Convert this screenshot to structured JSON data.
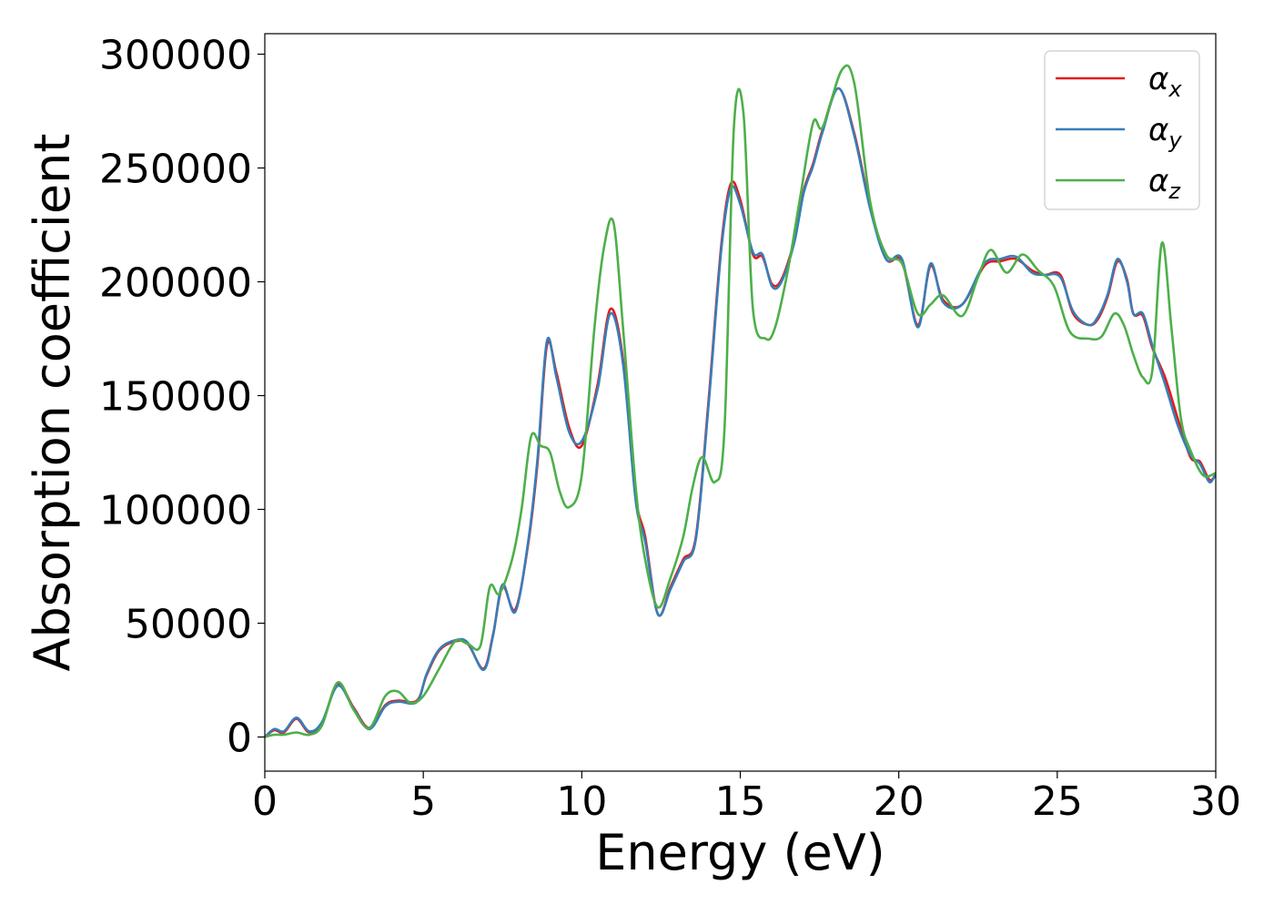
{
  "chart_data": {
    "type": "line",
    "title": "",
    "xlabel": "Energy (eV)",
    "ylabel": "Absorption coefficient",
    "xlim": [
      0,
      30
    ],
    "ylim": [
      -15000,
      309000
    ],
    "xticks": [
      0,
      5,
      10,
      15,
      20,
      25,
      30
    ],
    "yticks": [
      0,
      50000,
      100000,
      150000,
      200000,
      250000,
      300000
    ],
    "xtick_labels": [
      "0",
      "5",
      "10",
      "15",
      "20",
      "25",
      "30"
    ],
    "ytick_labels": [
      "0",
      "50000",
      "100000",
      "150000",
      "200000",
      "250000",
      "300000"
    ],
    "grid": false,
    "legend_position": "top-right",
    "series": [
      {
        "name": "αx",
        "legend_base": "α",
        "legend_sub": "x",
        "color": "#e41a1c",
        "x": [
          0,
          0.3,
          0.6,
          1.0,
          1.4,
          1.8,
          2.3,
          2.8,
          3.3,
          3.8,
          4.2,
          4.8,
          5.1,
          5.5,
          6.0,
          6.4,
          6.9,
          7.2,
          7.5,
          7.9,
          8.3,
          8.6,
          8.9,
          9.2,
          9.6,
          10.0,
          10.5,
          10.9,
          11.3,
          11.7,
          12.0,
          12.4,
          12.8,
          13.2,
          13.6,
          14.0,
          14.4,
          14.7,
          15.0,
          15.4,
          15.7,
          16.0,
          16.3,
          16.7,
          17.0,
          17.3,
          17.6,
          18.1,
          18.6,
          19.1,
          19.6,
          20.1,
          20.6,
          21.0,
          21.4,
          22.0,
          22.7,
          23.2,
          23.7,
          24.2,
          24.6,
          25.1,
          25.5,
          26.0,
          26.3,
          26.6,
          26.9,
          27.2,
          27.4,
          27.7,
          28.0,
          28.4,
          28.8,
          29.2,
          29.5,
          29.8,
          30.0
        ],
        "y": [
          0,
          3000,
          2000,
          8000,
          2000,
          6000,
          23000,
          13000,
          4000,
          14000,
          16000,
          16000,
          27000,
          38000,
          42000,
          41000,
          30000,
          45000,
          66000,
          56000,
          84000,
          120000,
          172000,
          160000,
          136000,
          128000,
          155000,
          188000,
          166000,
          106000,
          88000,
          54000,
          66000,
          78000,
          88000,
          148000,
          216000,
          243000,
          236000,
          212000,
          211000,
          199000,
          201000,
          218000,
          240000,
          252000,
          267000,
          285000,
          265000,
          233000,
          210000,
          209000,
          181000,
          207000,
          192000,
          190000,
          207000,
          209000,
          210000,
          205000,
          203000,
          203000,
          186000,
          181000,
          184000,
          194000,
          209000,
          201000,
          186000,
          185000,
          171000,
          158000,
          140000,
          123000,
          121000,
          113000,
          115000
        ]
      },
      {
        "name": "αy",
        "legend_base": "α",
        "legend_sub": "y",
        "color": "#377eb8",
        "x": [
          0,
          0.3,
          0.6,
          1.0,
          1.4,
          1.8,
          2.3,
          2.8,
          3.3,
          3.8,
          4.2,
          4.8,
          5.1,
          5.5,
          6.0,
          6.4,
          6.9,
          7.2,
          7.5,
          7.9,
          8.3,
          8.6,
          8.9,
          9.2,
          9.6,
          10.0,
          10.5,
          10.9,
          11.3,
          11.7,
          12.0,
          12.4,
          12.8,
          13.2,
          13.6,
          14.0,
          14.4,
          14.7,
          15.0,
          15.4,
          15.7,
          16.0,
          16.3,
          16.7,
          17.0,
          17.3,
          17.6,
          18.1,
          18.6,
          19.1,
          19.6,
          20.1,
          20.6,
          21.0,
          21.4,
          22.0,
          22.7,
          23.2,
          23.7,
          24.2,
          24.6,
          25.1,
          25.5,
          26.0,
          26.3,
          26.6,
          26.9,
          27.2,
          27.4,
          27.7,
          28.0,
          28.4,
          28.8,
          29.2,
          29.5,
          29.8,
          30.0
        ],
        "y": [
          0,
          3500,
          2500,
          8500,
          2500,
          6500,
          22500,
          12500,
          3500,
          13500,
          15500,
          15500,
          27500,
          38500,
          42500,
          41500,
          29500,
          44500,
          67000,
          55000,
          85000,
          122000,
          174000,
          158000,
          134000,
          130000,
          153000,
          186000,
          164000,
          104000,
          86000,
          54000,
          65000,
          77000,
          87000,
          146000,
          214000,
          241000,
          234000,
          213000,
          212000,
          198000,
          200000,
          217000,
          239000,
          251000,
          266000,
          285000,
          264000,
          232000,
          210000,
          210000,
          180000,
          208000,
          191000,
          190000,
          208000,
          210000,
          211000,
          204000,
          203000,
          202000,
          187000,
          181000,
          185000,
          195000,
          210000,
          200000,
          186000,
          186000,
          172000,
          155000,
          137000,
          124000,
          120000,
          112000,
          116000
        ]
      },
      {
        "name": "αz",
        "legend_base": "α",
        "legend_sub": "z",
        "color": "#4daf4a",
        "x": [
          0,
          0.3,
          0.6,
          1.0,
          1.4,
          1.8,
          2.3,
          2.8,
          3.3,
          3.8,
          4.2,
          4.6,
          5.0,
          5.5,
          6.0,
          6.4,
          6.8,
          7.1,
          7.4,
          7.8,
          8.1,
          8.4,
          8.7,
          9.0,
          9.3,
          9.6,
          10.0,
          10.4,
          10.7,
          11.0,
          11.3,
          11.7,
          12.0,
          12.4,
          12.8,
          13.2,
          13.5,
          13.8,
          14.2,
          14.5,
          14.8,
          15.1,
          15.4,
          15.8,
          16.1,
          16.5,
          16.9,
          17.3,
          17.6,
          18.2,
          18.6,
          19.1,
          19.6,
          20.1,
          20.6,
          21.0,
          21.4,
          22.0,
          22.5,
          22.9,
          23.4,
          23.9,
          24.4,
          24.9,
          25.4,
          26.0,
          26.4,
          26.8,
          27.1,
          27.4,
          27.7,
          28.0,
          28.3,
          28.6,
          28.9,
          29.2,
          29.6,
          30.0
        ],
        "y": [
          0,
          1000,
          1000,
          2000,
          1000,
          5000,
          24000,
          12000,
          4000,
          18000,
          20000,
          15000,
          18000,
          30000,
          42000,
          41000,
          40000,
          66000,
          63000,
          78000,
          100000,
          132000,
          128000,
          125000,
          108000,
          101000,
          115000,
          180000,
          215000,
          226000,
          180000,
          110000,
          78000,
          57000,
          70000,
          88000,
          110000,
          123000,
          112000,
          135000,
          268000,
          274000,
          188000,
          175000,
          180000,
          205000,
          238000,
          270000,
          268000,
          293000,
          287000,
          235000,
          212000,
          208000,
          186000,
          190000,
          194000,
          185000,
          202000,
          214000,
          204000,
          212000,
          205000,
          198000,
          178000,
          175000,
          176000,
          186000,
          181000,
          168000,
          158000,
          161000,
          217000,
          180000,
          140000,
          126000,
          115000,
          116000
        ]
      }
    ]
  }
}
